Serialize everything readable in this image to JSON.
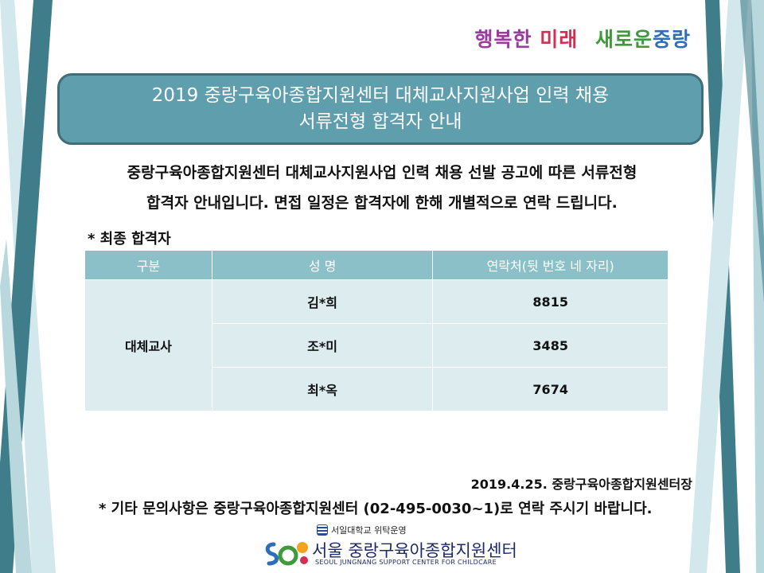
{
  "slogan": {
    "part1": "행복한",
    "part2": "미래",
    "part3": "새로운",
    "part4": "중랑"
  },
  "title": {
    "line1": "2019 중랑구육아종합지원센터 대체교사지원사업 인력 채용",
    "line2": "서류전형 합격자 안내"
  },
  "notice": {
    "line1": "중랑구육아종합지원센터 대체교사지원사업 인력 채용 선발 공고에 따른 서류전형",
    "line2": "합격자 안내입니다. 면접 일정은 합격자에 한해 개별적으로 연락 드립니다."
  },
  "section_label": "* 최종 합격자",
  "table": {
    "headers": [
      "구분",
      "성 명",
      "연락처(뒷 번호 네 자리)"
    ],
    "category": "대체교사",
    "rows": [
      {
        "name": "김*희",
        "contact": "8815"
      },
      {
        "name": "조*미",
        "contact": "3485"
      },
      {
        "name": "최*옥",
        "contact": "7674"
      }
    ]
  },
  "date_line": "2019.4.25. 중랑구육아종합지원센터장",
  "contact_line": "* 기타 문의사항은 중랑구육아종합지원센터 (02-495-0030~1)로  연락 주시기 바랍니다.",
  "footer": {
    "university": "서일대학교 위탁운영",
    "center_name": "서울 중랑구육아종합지원센터",
    "center_en": "SEOUL JUNGNANG SUPPORT CENTER FOR CHILDCARE"
  },
  "colors": {
    "title_bg": "#5f9fad",
    "table_header": "#8cc0c9",
    "table_cell": "#dcecef",
    "stripe_dark": "#3f7d8a",
    "stripe_light": "#d3e8ec"
  }
}
